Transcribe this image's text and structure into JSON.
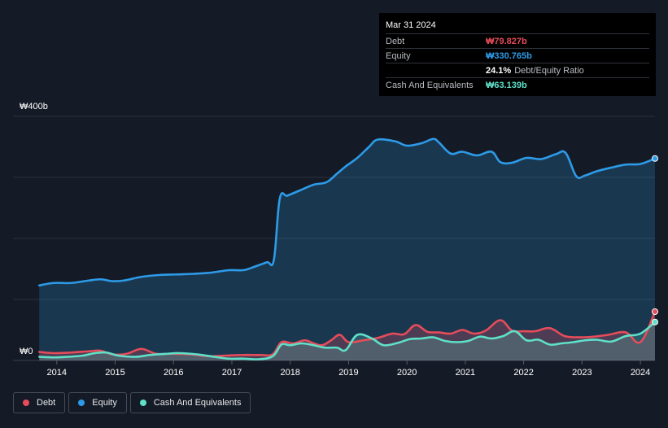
{
  "tooltip": {
    "date": "Mar 31 2024",
    "rows": [
      {
        "label": "Debt",
        "value": "₩79.827b",
        "color": "#e74c5a"
      },
      {
        "label": "Equity",
        "value": "₩330.765b",
        "color": "#2d9be8"
      },
      {
        "label": "",
        "value": "24.1%",
        "suffix": "Debt/Equity Ratio",
        "color": "#ffffff"
      },
      {
        "label": "Cash And Equivalents",
        "value": "₩63.139b",
        "color": "#5fe0c8"
      }
    ]
  },
  "legend": [
    {
      "label": "Debt",
      "color": "#e74c5a"
    },
    {
      "label": "Equity",
      "color": "#2d9be8"
    },
    {
      "label": "Cash And Equivalents",
      "color": "#5fe0c8"
    }
  ],
  "chart_data": {
    "type": "area",
    "title": "",
    "xlabel": "",
    "ylabel": "",
    "ylim": [
      0,
      400
    ],
    "y_tick_labels": [
      {
        "value": 400,
        "label": "₩400b"
      },
      {
        "value": 0,
        "label": "₩0"
      }
    ],
    "x_tick_labels": [
      "2014",
      "2015",
      "2016",
      "2017",
      "2018",
      "2019",
      "2020",
      "2021",
      "2022",
      "2023",
      "2024"
    ],
    "x_tick_values": [
      2014,
      2015,
      2016,
      2017,
      2018,
      2019,
      2020,
      2021,
      2022,
      2023,
      2024
    ],
    "xlim": [
      2013.25,
      2024.25
    ],
    "series": [
      {
        "name": "Equity",
        "color": "#2d9be8",
        "points": [
          [
            2013.7,
            123
          ],
          [
            2013.95,
            127
          ],
          [
            2014.25,
            127
          ],
          [
            2014.55,
            131
          ],
          [
            2014.75,
            133
          ],
          [
            2014.95,
            130
          ],
          [
            2015.15,
            131
          ],
          [
            2015.45,
            137
          ],
          [
            2015.75,
            140
          ],
          [
            2016.05,
            141
          ],
          [
            2016.35,
            142
          ],
          [
            2016.65,
            144
          ],
          [
            2016.95,
            148
          ],
          [
            2017.2,
            148
          ],
          [
            2017.4,
            154
          ],
          [
            2017.6,
            161
          ],
          [
            2017.72,
            165
          ],
          [
            2017.82,
            265
          ],
          [
            2017.95,
            270
          ],
          [
            2018.15,
            278
          ],
          [
            2018.4,
            288
          ],
          [
            2018.62,
            292
          ],
          [
            2018.8,
            306
          ],
          [
            2018.95,
            318
          ],
          [
            2019.15,
            332
          ],
          [
            2019.35,
            350
          ],
          [
            2019.5,
            362
          ],
          [
            2019.8,
            359
          ],
          [
            2020.0,
            352
          ],
          [
            2020.25,
            356
          ],
          [
            2020.45,
            363
          ],
          [
            2020.55,
            357
          ],
          [
            2020.75,
            339
          ],
          [
            2020.95,
            342
          ],
          [
            2021.2,
            336
          ],
          [
            2021.45,
            342
          ],
          [
            2021.6,
            325
          ],
          [
            2021.8,
            324
          ],
          [
            2022.05,
            332
          ],
          [
            2022.3,
            330
          ],
          [
            2022.55,
            338
          ],
          [
            2022.72,
            340
          ],
          [
            2022.9,
            302
          ],
          [
            2023.05,
            303
          ],
          [
            2023.25,
            310
          ],
          [
            2023.5,
            316
          ],
          [
            2023.75,
            321
          ],
          [
            2024.0,
            322
          ],
          [
            2024.25,
            331
          ]
        ]
      },
      {
        "name": "Debt",
        "color": "#e74c5a",
        "points": [
          [
            2013.7,
            14
          ],
          [
            2013.95,
            12
          ],
          [
            2014.25,
            13
          ],
          [
            2014.55,
            15
          ],
          [
            2014.75,
            16
          ],
          [
            2014.95,
            10
          ],
          [
            2015.2,
            11
          ],
          [
            2015.45,
            19
          ],
          [
            2015.7,
            11
          ],
          [
            2016.0,
            11
          ],
          [
            2016.3,
            10
          ],
          [
            2016.6,
            7
          ],
          [
            2016.9,
            8
          ],
          [
            2017.2,
            9
          ],
          [
            2017.5,
            9
          ],
          [
            2017.7,
            10
          ],
          [
            2017.85,
            30
          ],
          [
            2018.05,
            28
          ],
          [
            2018.25,
            33
          ],
          [
            2018.4,
            28
          ],
          [
            2018.55,
            25
          ],
          [
            2018.7,
            33
          ],
          [
            2018.85,
            42
          ],
          [
            2019.0,
            30
          ],
          [
            2019.25,
            33
          ],
          [
            2019.5,
            37
          ],
          [
            2019.75,
            44
          ],
          [
            2019.95,
            43
          ],
          [
            2020.15,
            58
          ],
          [
            2020.35,
            47
          ],
          [
            2020.55,
            46
          ],
          [
            2020.75,
            44
          ],
          [
            2020.95,
            50
          ],
          [
            2021.15,
            44
          ],
          [
            2021.35,
            49
          ],
          [
            2021.6,
            66
          ],
          [
            2021.8,
            49
          ],
          [
            2022.0,
            48
          ],
          [
            2022.2,
            48
          ],
          [
            2022.45,
            53
          ],
          [
            2022.7,
            40
          ],
          [
            2022.95,
            38
          ],
          [
            2023.2,
            39
          ],
          [
            2023.45,
            42
          ],
          [
            2023.75,
            46
          ],
          [
            2024.0,
            30
          ],
          [
            2024.25,
            80
          ]
        ]
      },
      {
        "name": "Cash And Equivalents",
        "color": "#5fe0c8",
        "points": [
          [
            2013.7,
            6
          ],
          [
            2013.95,
            5
          ],
          [
            2014.2,
            6
          ],
          [
            2014.45,
            8
          ],
          [
            2014.65,
            12
          ],
          [
            2014.85,
            13
          ],
          [
            2015.05,
            8
          ],
          [
            2015.35,
            6
          ],
          [
            2015.6,
            9
          ],
          [
            2015.9,
            11
          ],
          [
            2016.1,
            12
          ],
          [
            2016.4,
            10
          ],
          [
            2016.7,
            6
          ],
          [
            2016.95,
            3
          ],
          [
            2017.2,
            3
          ],
          [
            2017.45,
            2
          ],
          [
            2017.7,
            7
          ],
          [
            2017.85,
            26
          ],
          [
            2018.0,
            25
          ],
          [
            2018.2,
            28
          ],
          [
            2018.4,
            25
          ],
          [
            2018.6,
            21
          ],
          [
            2018.8,
            21
          ],
          [
            2018.95,
            17
          ],
          [
            2019.15,
            42
          ],
          [
            2019.4,
            36
          ],
          [
            2019.6,
            25
          ],
          [
            2019.85,
            29
          ],
          [
            2020.05,
            35
          ],
          [
            2020.25,
            36
          ],
          [
            2020.45,
            38
          ],
          [
            2020.65,
            32
          ],
          [
            2020.85,
            30
          ],
          [
            2021.05,
            32
          ],
          [
            2021.25,
            39
          ],
          [
            2021.45,
            36
          ],
          [
            2021.65,
            40
          ],
          [
            2021.85,
            48
          ],
          [
            2022.05,
            33
          ],
          [
            2022.25,
            34
          ],
          [
            2022.45,
            26
          ],
          [
            2022.65,
            28
          ],
          [
            2022.85,
            30
          ],
          [
            2023.05,
            33
          ],
          [
            2023.25,
            34
          ],
          [
            2023.5,
            31
          ],
          [
            2023.75,
            40
          ],
          [
            2024.0,
            44
          ],
          [
            2024.25,
            63
          ]
        ]
      }
    ]
  }
}
